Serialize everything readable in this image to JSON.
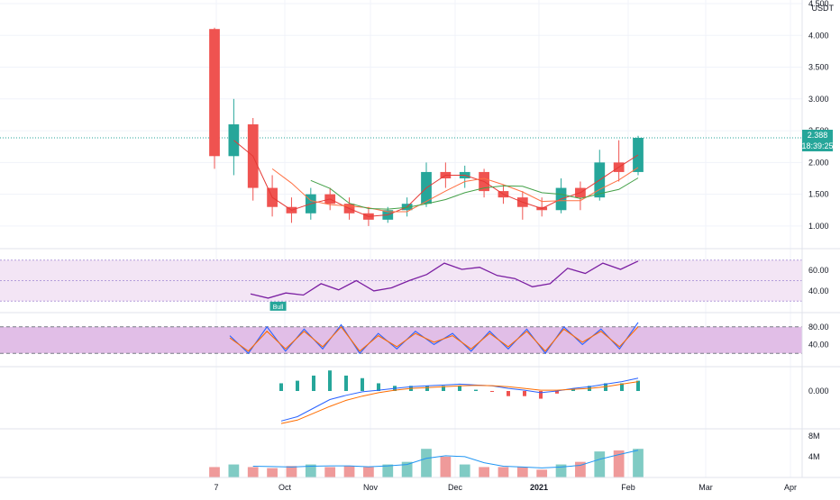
{
  "chart_data": [
    {
      "type": "candlestick",
      "pane": "price",
      "currency": "USDT",
      "last_price": "2.388",
      "countdown": "18:39:25",
      "ylim": [
        0.8,
        4.5
      ],
      "y_ticks": [
        "1.000",
        "1.500",
        "2.000",
        "2.500",
        "3.000",
        "3.500",
        "4.000",
        "4.500"
      ],
      "period_points": [
        {
          "date": "2020-09-07",
          "open": 4.1,
          "high": 4.12,
          "low": 1.9,
          "close": 2.1
        },
        {
          "date": "2020-09-14",
          "open": 2.1,
          "high": 3.0,
          "low": 1.8,
          "close": 2.6
        },
        {
          "date": "2020-09-21",
          "open": 2.6,
          "high": 2.7,
          "low": 1.4,
          "close": 1.6
        },
        {
          "date": "2020-09-28",
          "open": 1.6,
          "high": 1.8,
          "low": 1.15,
          "close": 1.3
        },
        {
          "date": "2020-10-05",
          "open": 1.3,
          "high": 1.45,
          "low": 1.05,
          "close": 1.2
        },
        {
          "date": "2020-10-12",
          "open": 1.2,
          "high": 1.6,
          "low": 1.1,
          "close": 1.5
        },
        {
          "date": "2020-10-19",
          "open": 1.5,
          "high": 1.6,
          "low": 1.25,
          "close": 1.35
        },
        {
          "date": "2020-10-26",
          "open": 1.35,
          "high": 1.45,
          "low": 1.1,
          "close": 1.2
        },
        {
          "date": "2020-11-02",
          "open": 1.2,
          "high": 1.3,
          "low": 1.0,
          "close": 1.1
        },
        {
          "date": "2020-11-09",
          "open": 1.1,
          "high": 1.3,
          "low": 1.05,
          "close": 1.25
        },
        {
          "date": "2020-11-16",
          "open": 1.25,
          "high": 1.45,
          "low": 1.15,
          "close": 1.35
        },
        {
          "date": "2020-11-23",
          "open": 1.35,
          "high": 2.0,
          "low": 1.3,
          "close": 1.85
        },
        {
          "date": "2020-11-30",
          "open": 1.85,
          "high": 2.0,
          "low": 1.6,
          "close": 1.75
        },
        {
          "date": "2020-12-07",
          "open": 1.75,
          "high": 1.95,
          "low": 1.6,
          "close": 1.85
        },
        {
          "date": "2020-12-14",
          "open": 1.85,
          "high": 1.9,
          "low": 1.45,
          "close": 1.55
        },
        {
          "date": "2020-12-21",
          "open": 1.55,
          "high": 1.65,
          "low": 1.35,
          "close": 1.45
        },
        {
          "date": "2020-12-28",
          "open": 1.45,
          "high": 1.55,
          "low": 1.1,
          "close": 1.3
        },
        {
          "date": "2021-01-04",
          "open": 1.3,
          "high": 1.45,
          "low": 1.15,
          "close": 1.25
        },
        {
          "date": "2021-01-11",
          "open": 1.25,
          "high": 1.75,
          "low": 1.2,
          "close": 1.6
        },
        {
          "date": "2021-01-18",
          "open": 1.6,
          "high": 1.7,
          "low": 1.25,
          "close": 1.45
        },
        {
          "date": "2021-01-25",
          "open": 1.45,
          "high": 2.2,
          "low": 1.4,
          "close": 2.0
        },
        {
          "date": "2021-02-01",
          "open": 2.0,
          "high": 2.35,
          "low": 1.7,
          "close": 1.85
        },
        {
          "date": "2021-02-08",
          "open": 1.85,
          "high": 2.42,
          "low": 1.8,
          "close": 2.388
        }
      ]
    },
    {
      "type": "line",
      "pane": "rsi",
      "label_marker": "Bull",
      "band": [
        30,
        70
      ],
      "y_ticks": [
        "40.00",
        "60.00"
      ],
      "series": [
        {
          "values": [
            37,
            33,
            38,
            36,
            47,
            41,
            50,
            40,
            43,
            50,
            56,
            67,
            61,
            63,
            55,
            52,
            44,
            47,
            62,
            57,
            67,
            61,
            69
          ]
        }
      ]
    },
    {
      "type": "line",
      "pane": "stoch_rsi",
      "y_ticks": [
        "40.00",
        "80.00"
      ],
      "bands": [
        20,
        80
      ],
      "series": [
        {
          "values": [
            60,
            20,
            80,
            25,
            75,
            30,
            85,
            20,
            65,
            30,
            70,
            40,
            65,
            25,
            70,
            30,
            75,
            20,
            80,
            40,
            75,
            30,
            90
          ]
        },
        {
          "values": [
            55,
            25,
            70,
            30,
            70,
            35,
            80,
            25,
            60,
            35,
            65,
            45,
            60,
            30,
            65,
            35,
            70,
            25,
            75,
            45,
            70,
            35,
            80
          ]
        }
      ]
    },
    {
      "type": "line",
      "pane": "macd",
      "y_ticks": [
        "0.000"
      ],
      "series": [
        {
          "values": [
            -0.35,
            -0.3,
            -0.2,
            -0.1,
            -0.05,
            -0.01,
            0.01,
            0.03,
            0.05,
            0.06,
            0.07,
            0.08,
            0.07,
            0.06,
            0.03,
            0.01,
            -0.02,
            0.0,
            0.03,
            0.05,
            0.08,
            0.11,
            0.15
          ]
        },
        {
          "values": [
            -0.38,
            -0.34,
            -0.26,
            -0.18,
            -0.11,
            -0.06,
            -0.02,
            0.01,
            0.03,
            0.04,
            0.05,
            0.06,
            0.065,
            0.062,
            0.05,
            0.03,
            0.01,
            0.01,
            0.02,
            0.03,
            0.05,
            0.08,
            0.11
          ]
        }
      ]
    },
    {
      "type": "bar",
      "pane": "volume",
      "y_ticks": [
        "4M",
        "8M"
      ],
      "values": [
        2.0,
        2.5,
        2.0,
        1.8,
        2.2,
        2.5,
        2.0,
        2.2,
        2.0,
        2.5,
        3.0,
        5.5,
        4.0,
        2.5,
        2.0,
        2.0,
        2.0,
        1.5,
        2.5,
        3.0,
        5.0,
        5.2,
        5.5
      ],
      "x_ticks": [
        "7",
        "Oct",
        "Nov",
        "Dec",
        "2021",
        "Feb",
        "Mar",
        "Apr"
      ]
    }
  ],
  "colors": {
    "up": "#26a69a",
    "down": "#ef5350",
    "rsi_line": "#7b1fa2",
    "rsi_band": "#f3e5f5",
    "stoch_k": "#2962ff",
    "stoch_d": "#ff6d00",
    "stoch_band": "#e1bee7",
    "ma_green": "#43a047",
    "ma_orange": "#ff7043",
    "ma_red": "#e53935",
    "price_tag": "#26a69a",
    "grid": "#f0f3fa",
    "axis_text": "#131722",
    "label_marker": "#26a69a"
  }
}
